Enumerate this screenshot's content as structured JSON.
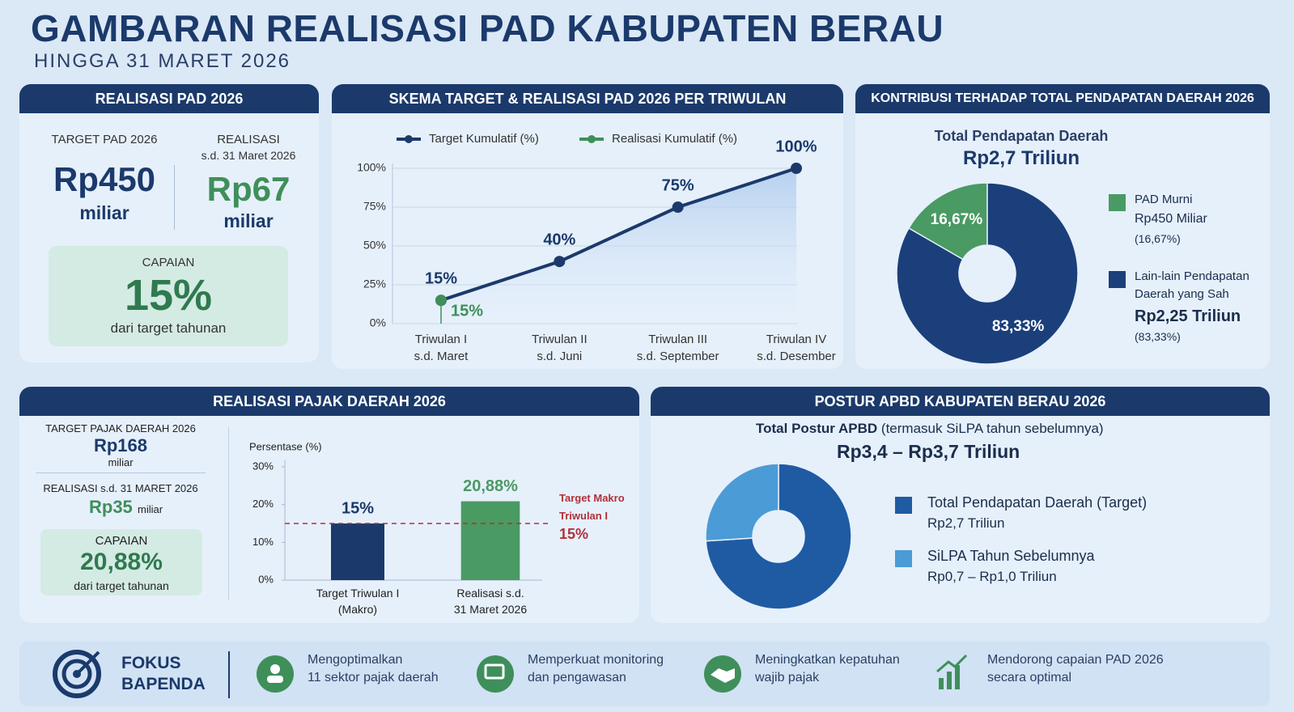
{
  "header": {
    "title": "GAMBARAN REALISASI PAD KABUPATEN BERAU",
    "subtitle": "HINGGA 31 MARET 2026"
  },
  "pad_card": {
    "title": "REALISASI PAD 2026",
    "target_label": "TARGET PAD 2026",
    "target_value": "Rp450",
    "target_unit": "miliar",
    "realisasi_label": "REALISASI",
    "realisasi_sub": "s.d. 31 Maret 2026",
    "realisasi_value": "Rp67",
    "realisasi_unit": "miliar",
    "capaian_label": "CAPAIAN",
    "capaian_value": "15%",
    "capaian_sub": "dari target tahunan"
  },
  "pajak_card": {
    "target_label": "TARGET PAJAK DAERAH 2026",
    "target_value": "Rp168",
    "target_unit": "miliar",
    "realisasi_label": "REALISASI s.d. 31 MARET 2026",
    "realisasi_value": "Rp35",
    "realisasi_unit": "miliar",
    "capaian_label": "CAPAIAN",
    "capaian_value": "20,88%",
    "capaian_sub": "dari target tahunan"
  },
  "focus": {
    "title": "FOKUS\nBAPENDA",
    "items": [
      "Mengoptimalkan\n11 sektor pajak daerah",
      "Memperkuat monitoring\ndan pengawasan",
      "Meningkatkan kepatuhan\nwajib pajak",
      "Mendorong capaian PAD 2026\nsecara optimal"
    ]
  },
  "chart_data": [
    {
      "type": "line",
      "title": "SKEMA TARGET & REALISASI PAD 2026 PER TRIWULAN",
      "categories": [
        "Triwulan I\ns.d. Maret",
        "Triwulan II\ns.d. Juni",
        "Triwulan III\ns.d. September",
        "Triwulan IV\ns.d. Desember"
      ],
      "series": [
        {
          "name": "Target Kumulatif (%)",
          "color": "#1b3a6b",
          "values": [
            15,
            40,
            75,
            100
          ],
          "value_labels": [
            "15%",
            "40%",
            "75%",
            "100%"
          ]
        },
        {
          "name": "Realisasi Kumulatif (%)",
          "color": "#3f8f5a",
          "values": [
            15,
            null,
            null,
            null
          ],
          "value_labels": [
            "15%",
            null,
            null,
            null
          ]
        }
      ],
      "ylim": [
        0,
        100
      ],
      "yticks": [
        {
          "value": 0,
          "label": "0%"
        },
        {
          "value": 25,
          "label": "25%"
        },
        {
          "value": 50,
          "label": "50%"
        },
        {
          "value": 75,
          "label": "75%"
        },
        {
          "value": 100,
          "label": "100%"
        }
      ],
      "grid": true
    },
    {
      "type": "pie",
      "title": "KONTRIBUSI TERHADAP TOTAL PENDAPATAN DAERAH 2026",
      "subtitle": "Total Pendapatan Daerah",
      "total": "Rp2,7 Triliun",
      "categories": [
        "PAD Murni",
        "Lain-lain Pendapatan\nDaerah yang Sah"
      ],
      "details": [
        "Rp450 Miliar",
        "Rp2,25 Triliun"
      ],
      "legend_notes": [
        "(16,67%)",
        "(83,33%)"
      ],
      "values": [
        16.67,
        83.33
      ],
      "value_labels": [
        "16,67%",
        "83,33%"
      ],
      "colors": [
        "#4a9a63",
        "#1b3f7a"
      ]
    },
    {
      "type": "bar",
      "title": "REALISASI PAJAK DAERAH 2026",
      "ylabel": "Persentase (%)",
      "categories": [
        "Target Triwulan I\n(Makro)",
        "Realisasi s.d.\n31 Maret 2026"
      ],
      "values": [
        15,
        20.88
      ],
      "value_labels": [
        "15%",
        "20,88%"
      ],
      "colors": [
        "#1b3a6b",
        "#4a9a63"
      ],
      "ylim": [
        0,
        30
      ],
      "yticks": [
        {
          "value": 0,
          "label": "0%"
        },
        {
          "value": 10,
          "label": "10%"
        },
        {
          "value": 20,
          "label": "20%"
        },
        {
          "value": 30,
          "label": "30%"
        }
      ],
      "reference_line": {
        "value": 15,
        "label": "Target Makro\nTriwulan I",
        "value_label": "15%",
        "color": "#b0303a"
      }
    },
    {
      "type": "pie",
      "title": "POSTUR APBD KABUPATEN BERAU 2026",
      "subtitle": "Total Postur APBD",
      "subtitle_note": "(termasuk SiLPA tahun sebelumnya)",
      "total": "Rp3,4 – Rp3,7 Triliun",
      "categories": [
        "Total Pendapatan Daerah (Target)",
        "SiLPA Tahun Sebelumnya"
      ],
      "details": [
        "Rp2,7 Triliun",
        "Rp0,7 – Rp1,0 Triliun"
      ],
      "values": [
        74,
        26
      ],
      "colors": [
        "#1f5ba3",
        "#4b9bd6"
      ]
    }
  ]
}
